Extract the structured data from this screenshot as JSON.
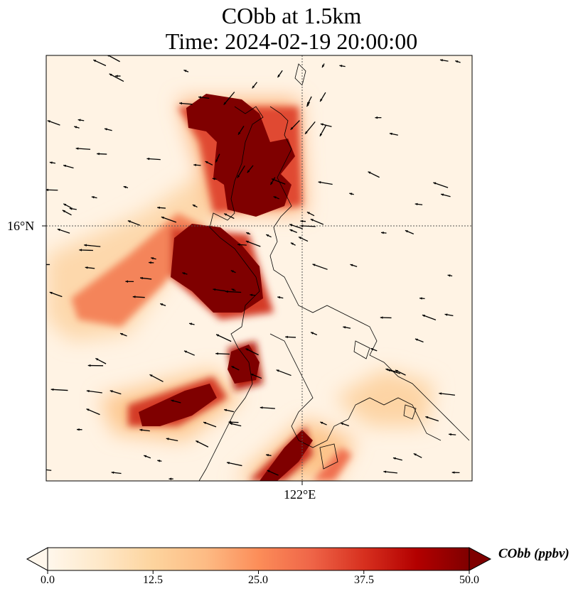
{
  "chart_data": {
    "type": "heatmap",
    "title": [
      "CObb at 1.5km",
      "Time: 2024-02-19 20:00:00"
    ],
    "variable": "CObb",
    "height": "1.5km",
    "time": "2024-02-19 20:00:00",
    "xticks": [
      "122°E"
    ],
    "yticks": [
      "16°N"
    ],
    "colorbar": {
      "label": "CObb (ppbv)",
      "ticks": [
        "0.0",
        "12.5",
        "25.0",
        "37.5",
        "50.0"
      ],
      "range": [
        0,
        50
      ],
      "extend": "both",
      "colormap": [
        "#fff7ec",
        "#fee8c8",
        "#fdd49e",
        "#fdbb84",
        "#fc8d59",
        "#ef6548",
        "#d7301f",
        "#b30000",
        "#7f0000"
      ]
    },
    "overlays": [
      "coastlines",
      "wind vectors",
      "gridlines"
    ]
  }
}
